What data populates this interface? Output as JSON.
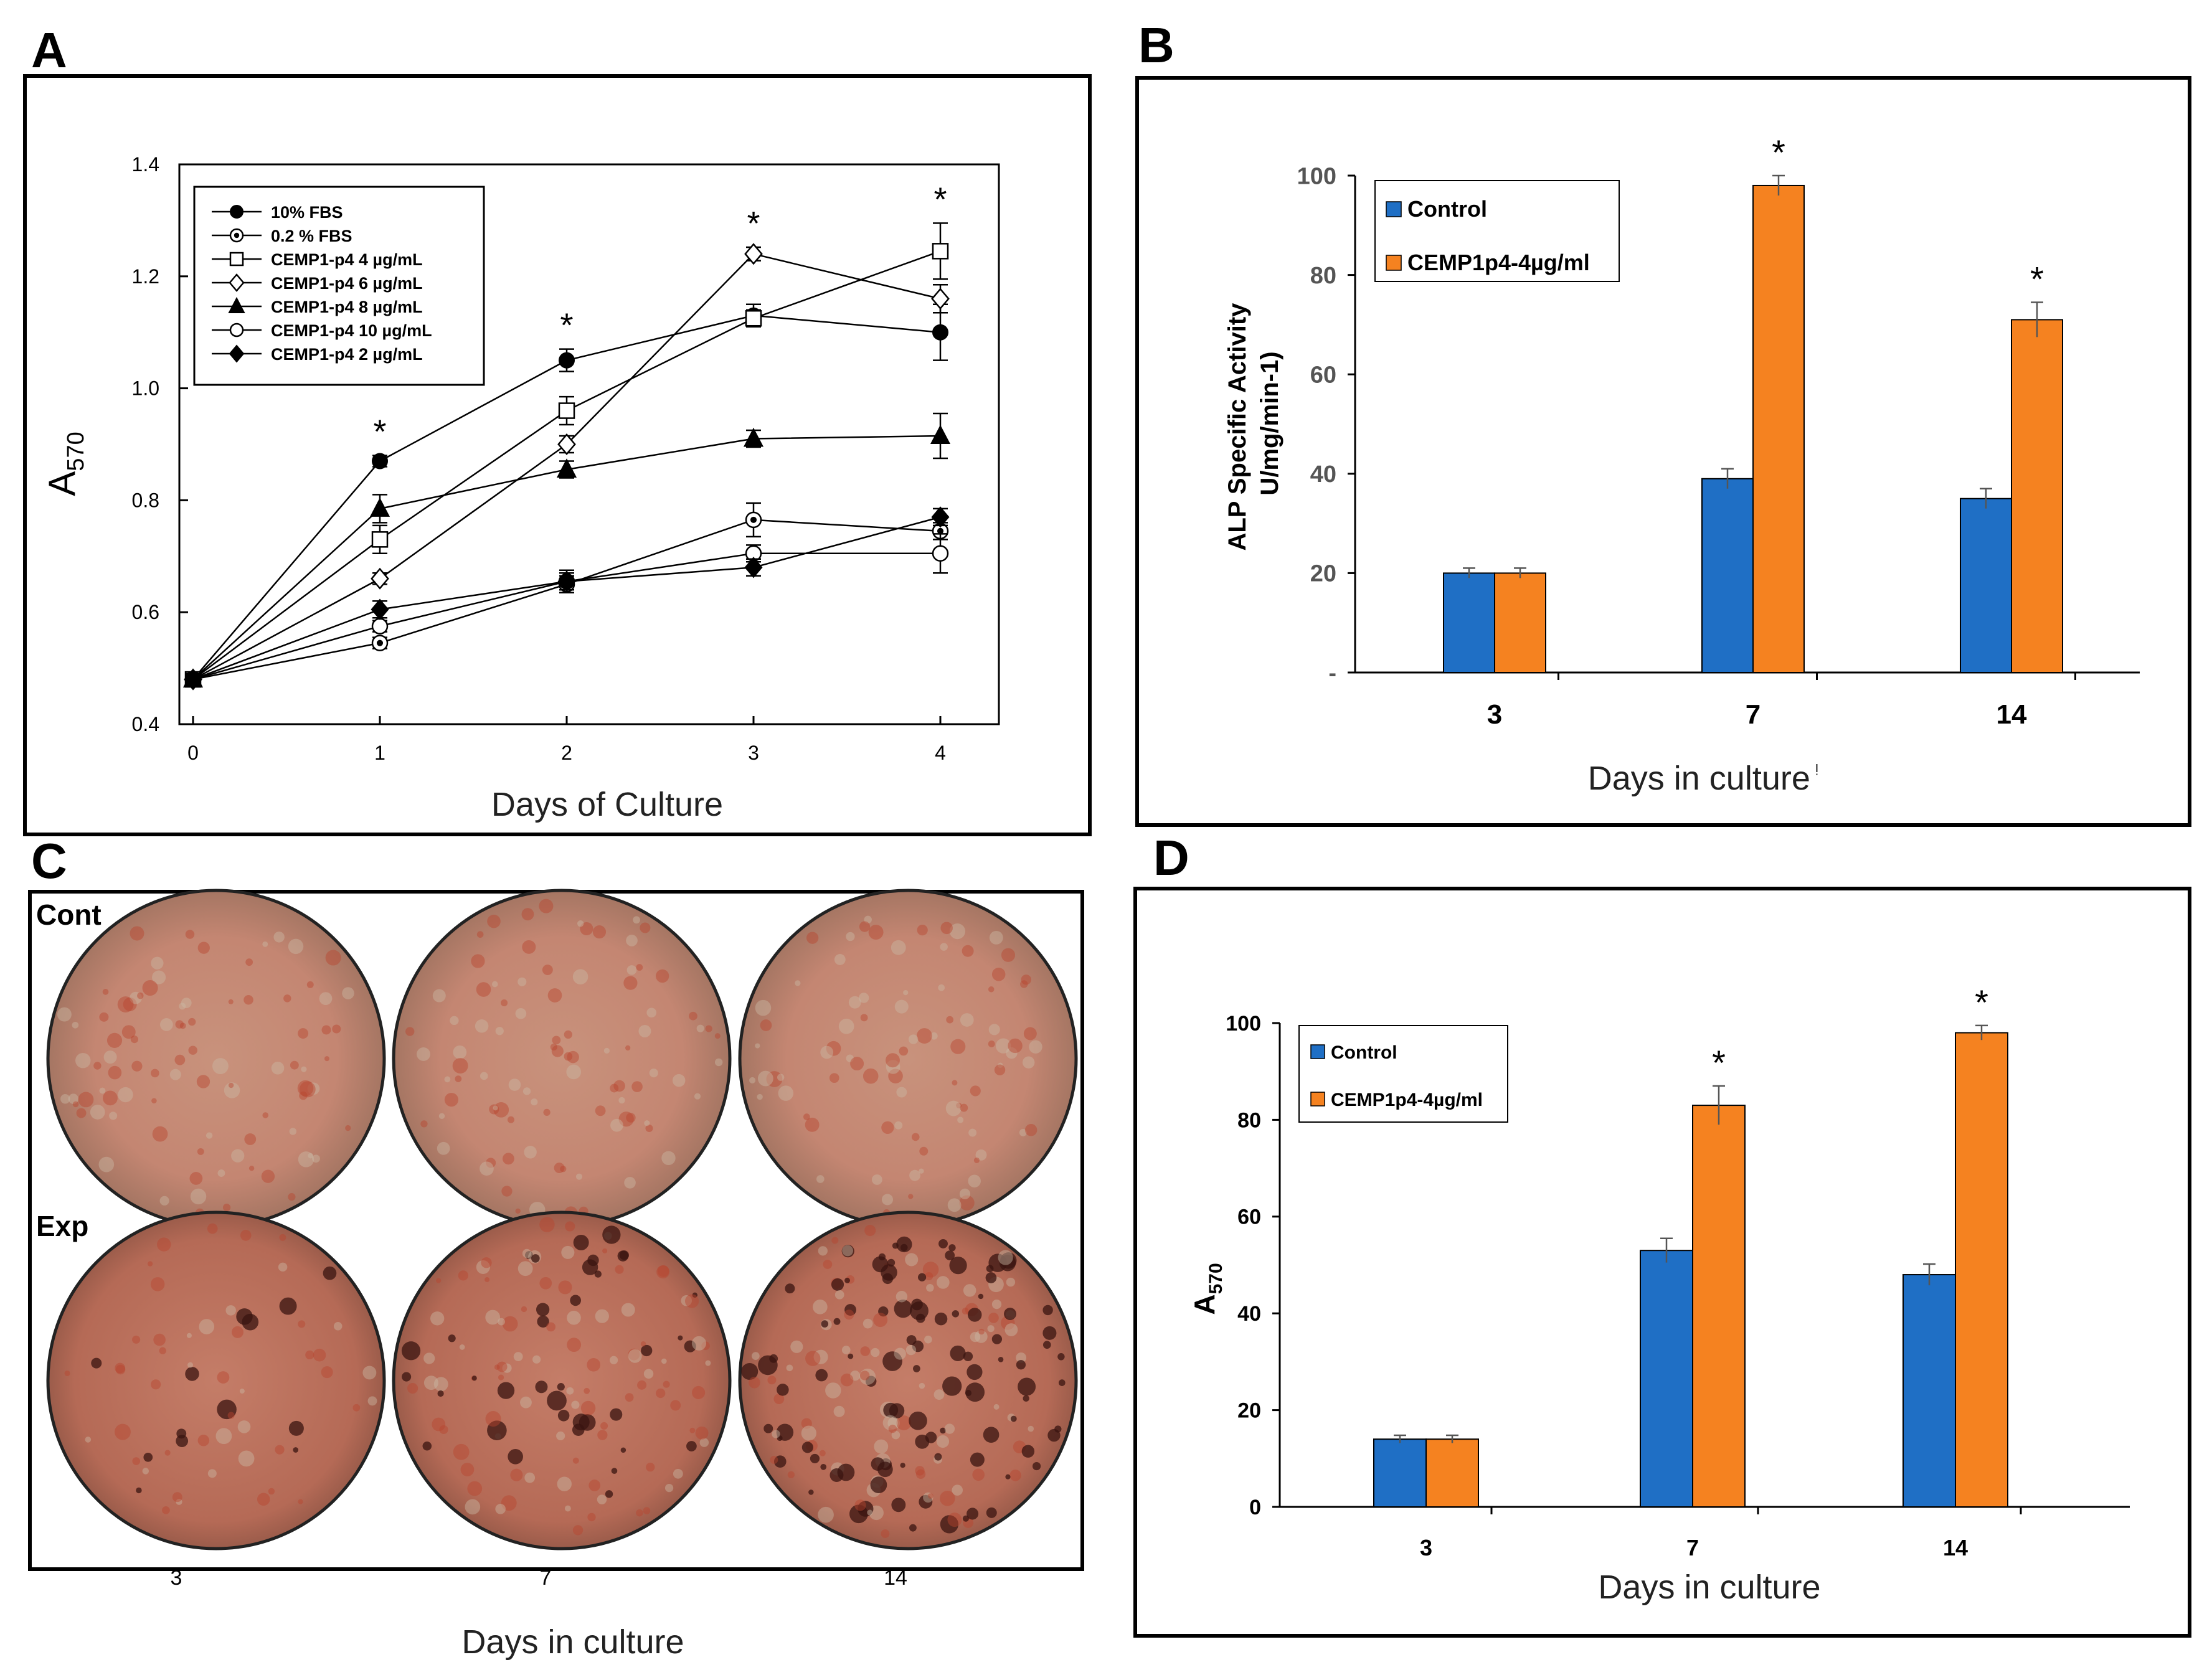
{
  "figure": {
    "panels": {
      "a": "A",
      "b": "B",
      "c": "C",
      "d": "D"
    }
  },
  "chart_data": [
    {
      "id": "A",
      "type": "line",
      "xlabel": "Days of Culture",
      "ylabel_main": "A",
      "ylabel_sub": "570",
      "x": [
        0,
        1,
        2,
        3,
        4
      ],
      "x_tick_labels": [
        "0",
        "1",
        "2",
        "3",
        "4"
      ],
      "ylim": [
        0.4,
        1.4
      ],
      "y_ticks": [
        0.4,
        0.6,
        0.8,
        1.0,
        1.2,
        1.4
      ],
      "y_tick_labels": [
        "0.4",
        "0.6",
        "0.8",
        "1.0",
        "1.2",
        "1.4"
      ],
      "grid": false,
      "legend_position": "top-left",
      "asterisks_at_x": [
        1,
        2,
        3,
        4
      ],
      "asterisk_label": "*",
      "series": [
        {
          "name": "10% FBS",
          "marker": "filled-circle",
          "values": [
            0.48,
            0.87,
            1.05,
            1.13,
            1.1
          ],
          "errors": [
            0.01,
            0.01,
            0.02,
            0.02,
            0.05
          ]
        },
        {
          "name": "0.2 % FBS",
          "marker": "dotted-circle",
          "values": [
            0.48,
            0.545,
            0.65,
            0.765,
            0.745
          ],
          "errors": [
            0.01,
            0.01,
            0.015,
            0.03,
            0.015
          ]
        },
        {
          "name": "CEMP1-p4 4 µg/mL",
          "marker": "open-square",
          "values": [
            0.48,
            0.73,
            0.96,
            1.125,
            1.245
          ],
          "errors": [
            0.01,
            0.025,
            0.025,
            0.015,
            0.05
          ]
        },
        {
          "name": "CEMP1-p4 6 µg/mL",
          "marker": "open-diamond",
          "values": [
            0.48,
            0.66,
            0.9,
            1.24,
            1.16
          ],
          "errors": [
            0.01,
            0.01,
            0.015,
            0.012,
            0.025
          ]
        },
        {
          "name": "CEMP1-p4 8 µg/mL",
          "marker": "filled-triangle",
          "values": [
            0.48,
            0.785,
            0.855,
            0.91,
            0.915
          ],
          "errors": [
            0.01,
            0.025,
            0.015,
            0.015,
            0.04
          ]
        },
        {
          "name": "CEMP1-p4 10 µg/mL",
          "marker": "open-circle",
          "values": [
            0.48,
            0.575,
            0.655,
            0.705,
            0.705
          ],
          "errors": [
            0.01,
            0.01,
            0.015,
            0.015,
            0.035
          ]
        },
        {
          "name": "CEMP1-p4 2 µg/mL",
          "marker": "filled-diamond",
          "values": [
            0.48,
            0.605,
            0.655,
            0.68,
            0.77
          ],
          "errors": [
            0.01,
            0.015,
            0.02,
            0.015,
            0.015
          ]
        }
      ]
    },
    {
      "id": "B",
      "type": "bar",
      "xlabel": "Days in culture",
      "xlabel_suffix": "ᵎ",
      "ylabel_lines": [
        "ALP Specific Activity",
        "U/mg/min-1)"
      ],
      "categories": [
        "3",
        "7",
        "14"
      ],
      "ylim": [
        0,
        100
      ],
      "y_tick_labels": [
        "-",
        "20",
        "40",
        "60",
        "80",
        "100"
      ],
      "grid": false,
      "legend_position": "top-left",
      "asterisk_label": "*",
      "series": [
        {
          "name": "Control",
          "color": "#1f6fc5",
          "values": [
            20,
            39,
            35
          ],
          "errors": [
            1,
            2,
            2
          ],
          "asterisk": [
            false,
            false,
            false
          ]
        },
        {
          "name": "CEMP1p4-4µg/ml",
          "color": "#f58220",
          "values": [
            20,
            98,
            71
          ],
          "errors": [
            1,
            2,
            3.5
          ],
          "asterisk": [
            false,
            true,
            true
          ]
        }
      ]
    },
    {
      "id": "C",
      "type": "image-grid",
      "row_labels": [
        "Cont",
        "Exp"
      ],
      "column_labels": [
        "3",
        "7",
        "14"
      ],
      "xlabel": "Days in culture"
    },
    {
      "id": "D",
      "type": "bar",
      "xlabel": "Days in culture",
      "ylabel_main": "A",
      "ylabel_sub": "570",
      "categories": [
        "3",
        "7",
        "14"
      ],
      "ylim": [
        0,
        100
      ],
      "y_tick_labels": [
        "0",
        "20",
        "40",
        "60",
        "80",
        "100"
      ],
      "grid": false,
      "legend_position": "top-left",
      "asterisk_label": "*",
      "series": [
        {
          "name": "Control",
          "color": "#1f6fc5",
          "values": [
            14,
            53,
            48
          ],
          "errors": [
            0.8,
            2.5,
            2.2
          ],
          "asterisk": [
            false,
            false,
            false
          ]
        },
        {
          "name": "CEMP1p4-4µg/ml",
          "color": "#f58220",
          "values": [
            14,
            83,
            98
          ],
          "errors": [
            0.8,
            4,
            1.5
          ],
          "asterisk": [
            false,
            true,
            true
          ]
        }
      ]
    }
  ]
}
